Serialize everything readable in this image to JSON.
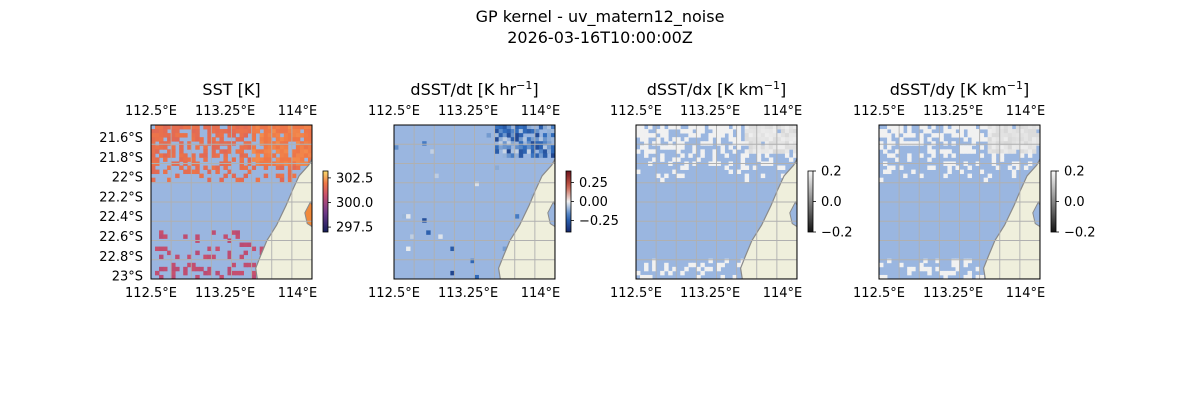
{
  "figure": {
    "title_line1": "GP kernel - uv_matern12_noise",
    "title_line2": "2026-03-16T10:00:00Z"
  },
  "chart_data": [
    {
      "type": "heatmap",
      "title": "SST [K]",
      "title_base": "SST [K]",
      "title_sup": "",
      "x_ticks": [
        "112.5°E",
        "113.25°E",
        "114°E"
      ],
      "y_ticks": [
        "21.6°S",
        "21.8°S",
        "22°S",
        "22.2°S",
        "22.4°S",
        "22.6°S",
        "22.8°S",
        "23°S"
      ],
      "show_y_ticks": true,
      "xlim": [
        112.5,
        114.15
      ],
      "ylim": [
        -23.03,
        -21.47
      ],
      "colorbar": {
        "ticks": [
          "302.5",
          "300.0",
          "297.5"
        ],
        "values": [
          302.5,
          300.0,
          297.5
        ],
        "range": [
          297.0,
          303.2
        ],
        "colormap": "thermal"
      },
      "grid": true,
      "land_color": "#efefdc",
      "masked_color": "#9ab6e0"
    },
    {
      "type": "heatmap",
      "title": "dSST/dt [K hr−1]",
      "title_base": "dSST/dt [K hr",
      "title_sup": "−1",
      "title_end": "]",
      "x_ticks": [
        "112.5°E",
        "113.25°E",
        "114°E"
      ],
      "show_y_ticks": false,
      "xlim": [
        112.5,
        114.15
      ],
      "ylim": [
        -23.03,
        -21.47
      ],
      "colorbar": {
        "ticks": [
          "0.25",
          "0.00",
          "−0.25"
        ],
        "values": [
          0.25,
          0.0,
          -0.25
        ],
        "range": [
          -0.4,
          0.4
        ],
        "colormap": "balance"
      },
      "grid": true,
      "land_color": "#efefdc",
      "masked_color": "#9ab6e0"
    },
    {
      "type": "heatmap",
      "title": "dSST/dx [K km−1]",
      "title_base": "dSST/dx [K km",
      "title_sup": "−1",
      "title_end": "]",
      "x_ticks": [
        "112.5°E",
        "113.25°E",
        "114°E"
      ],
      "show_y_ticks": false,
      "xlim": [
        112.5,
        114.15
      ],
      "ylim": [
        -23.03,
        -21.47
      ],
      "colorbar": {
        "ticks": [
          "0.2",
          "0.0",
          "−0.2"
        ],
        "values": [
          0.2,
          0.0,
          -0.2
        ],
        "range": [
          -0.2,
          0.2
        ],
        "colormap": "gray"
      },
      "grid": true,
      "land_color": "#efefdc",
      "masked_color": "#9ab6e0"
    },
    {
      "type": "heatmap",
      "title": "dSST/dy [K km−1]",
      "title_base": "dSST/dy [K km",
      "title_sup": "−1",
      "title_end": "]",
      "x_ticks": [
        "112.5°E",
        "113.25°E",
        "114°E"
      ],
      "show_y_ticks": false,
      "xlim": [
        112.5,
        114.15
      ],
      "ylim": [
        -23.03,
        -21.47
      ],
      "colorbar": {
        "ticks": [
          "0.2",
          "0.0",
          "−0.2"
        ],
        "values": [
          0.2,
          0.0,
          -0.2
        ],
        "range": [
          -0.2,
          0.2
        ],
        "colormap": "gray"
      },
      "grid": true,
      "land_color": "#efefdc",
      "masked_color": "#9ab6e0"
    }
  ]
}
